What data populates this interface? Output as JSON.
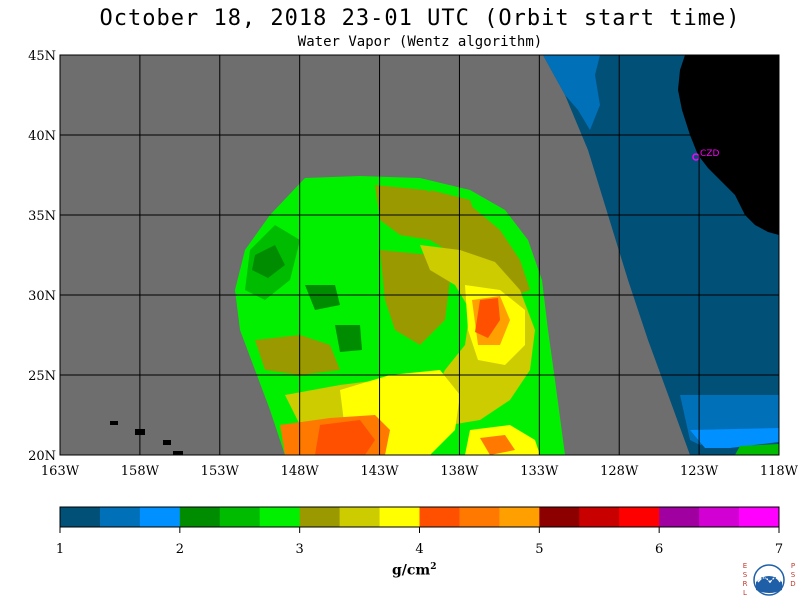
{
  "title": "October 18, 2018  23-01 UTC  (Orbit start time)",
  "subtitle": "Water Vapor (Wentz algorithm)",
  "map": {
    "lat_labels": [
      "45N",
      "40N",
      "35N",
      "30N",
      "25N",
      "20N"
    ],
    "lon_labels": [
      "163W",
      "158W",
      "153W",
      "148W",
      "143W",
      "138W",
      "133W",
      "128W",
      "123W",
      "118W"
    ],
    "lat_range": [
      20,
      45
    ],
    "lon_range": [
      -163,
      -118
    ],
    "grid_interval_deg": 5,
    "station_label": "CZD",
    "colors": {
      "no_data": "#6e6e6e",
      "land": "#000000",
      "grid": "#000000",
      "station": "#ff00ff"
    }
  },
  "legend": {
    "unit_base": "g/cm",
    "unit_exp": "2",
    "tick_labels": [
      "1",
      "2",
      "3",
      "4",
      "5",
      "6",
      "7"
    ],
    "range": [
      1,
      7
    ],
    "colors": [
      "#005078",
      "#0070b8",
      "#0090ff",
      "#008c00",
      "#00bc00",
      "#00f000",
      "#9a9a00",
      "#cccc00",
      "#ffff00",
      "#ff5000",
      "#ff7800",
      "#ffa000",
      "#8c0000",
      "#c80000",
      "#ff0000",
      "#a000a0",
      "#d200d2",
      "#ff00ff"
    ]
  },
  "logo": {
    "left_letters": "ESRL",
    "right_letters": "PSD",
    "center": "NOAA"
  }
}
